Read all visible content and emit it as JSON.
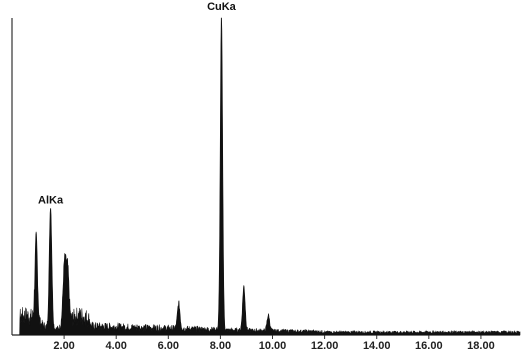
{
  "chart_data": {
    "type": "line",
    "title": "",
    "xlabel": "",
    "ylabel": "",
    "xlim": [
      0,
      19.5
    ],
    "ylim": [
      0,
      100
    ],
    "x_ticks": [
      "2.00",
      "4.00",
      "6.00",
      "8.00",
      "10.00",
      "12.00",
      "14.00",
      "16.00",
      "18.00"
    ],
    "grid": false,
    "line_color": "#111111",
    "peaks": [
      {
        "x": 0.93,
        "y": 26,
        "width": 0.05
      },
      {
        "x": 1.48,
        "y": 39,
        "width": 0.05
      },
      {
        "x": 2.02,
        "y": 20,
        "width": 0.06
      },
      {
        "x": 2.14,
        "y": 15,
        "width": 0.05
      },
      {
        "x": 6.4,
        "y": 8,
        "width": 0.05
      },
      {
        "x": 8.04,
        "y": 100,
        "width": 0.045
      },
      {
        "x": 8.9,
        "y": 14,
        "width": 0.05
      },
      {
        "x": 9.84,
        "y": 5,
        "width": 0.05
      }
    ],
    "annotations": [
      {
        "text": "AlKa",
        "x": 1.48,
        "y": 39
      },
      {
        "text": "CuKa",
        "x": 8.04,
        "y": 100
      }
    ]
  }
}
